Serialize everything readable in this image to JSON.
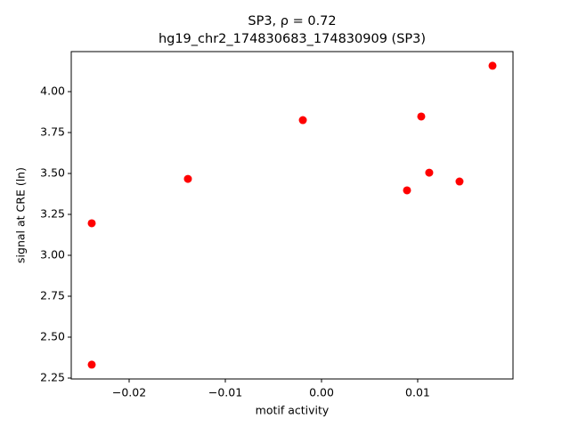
{
  "chart_data": {
    "type": "scatter",
    "title": "SP3, ρ = 0.72",
    "subtitle": "hg19_chr2_174830683_174830909 (SP3)",
    "x_label": "motif activity",
    "y_label": "signal at CRE (ln)",
    "color": "#ff0000",
    "x": [
      -0.02389,
      -0.02389,
      -0.01389,
      -0.00194,
      0.00889,
      0.01037,
      0.0112,
      0.01435,
      0.01778
    ],
    "values": [
      3.196,
      2.332,
      3.467,
      3.826,
      3.397,
      3.848,
      3.505,
      3.451,
      4.158
    ],
    "xlim": [
      -0.02602,
      0.01991
    ],
    "ylim": [
      2.2446,
      4.2446
    ],
    "xticks": [
      {
        "value": -0.02,
        "label": "−0.02"
      },
      {
        "value": -0.01,
        "label": "−0.01"
      },
      {
        "value": 0,
        "label": "0.00"
      },
      {
        "value": 0.01,
        "label": "0.01"
      }
    ],
    "yticks": [
      2.25,
      {
        "value": 2.5,
        "label": "2.50"
      },
      2.75,
      {
        "value": 3,
        "label": "3.00"
      },
      3.25,
      {
        "value": 3.5,
        "label": "3.50"
      },
      3.75,
      {
        "value": 4,
        "label": "4.00"
      }
    ],
    "grid": false
  }
}
